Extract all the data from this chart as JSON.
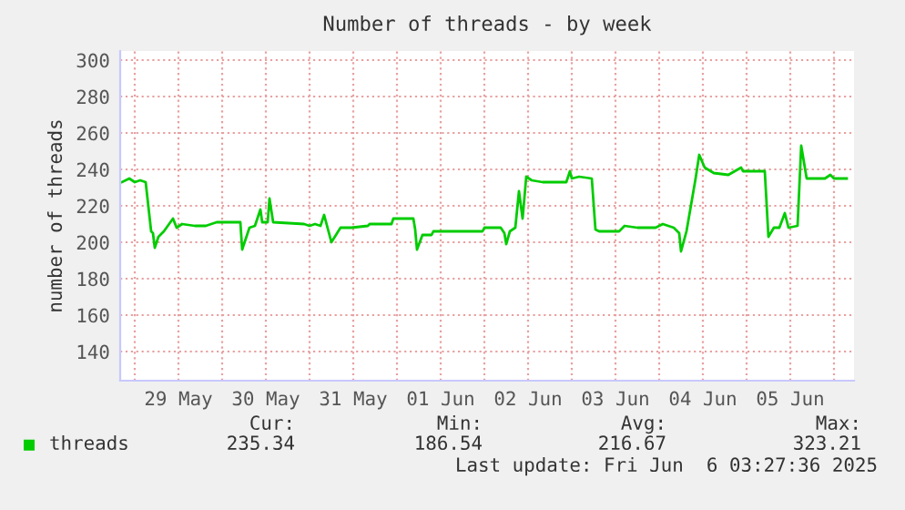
{
  "chart_data": {
    "type": "line",
    "title": "Number of threads - by week",
    "ylabel": "number of threads",
    "x": [
      "2025-05-28T20:30",
      "2025-05-28T22:30",
      "2025-05-29T00:00",
      "2025-05-29T01:30",
      "2025-05-29T03:00",
      "2025-05-29T04:30",
      "2025-05-29T05:00",
      "2025-05-29T05:30",
      "2025-05-29T06:30",
      "2025-05-29T08:00",
      "2025-05-29T10:30",
      "2025-05-29T11:30",
      "2025-05-29T13:00",
      "2025-05-29T16:30",
      "2025-05-29T19:30",
      "2025-05-29T22:30",
      "2025-05-30T05:00",
      "2025-05-30T05:30",
      "2025-05-30T07:30",
      "2025-05-30T09:00",
      "2025-05-30T10:30",
      "2025-05-30T11:00",
      "2025-05-30T12:30",
      "2025-05-30T13:00",
      "2025-05-30T14:00",
      "2025-05-30T22:30",
      "2025-05-31T00:00",
      "2025-05-31T01:30",
      "2025-05-31T03:00",
      "2025-05-31T04:00",
      "2025-05-31T06:00",
      "2025-05-31T08:30",
      "2025-05-31T11:30",
      "2025-05-31T16:00",
      "2025-05-31T16:30",
      "2025-05-31T22:30",
      "2025-05-31T23:00",
      "2025-06-01T04:30",
      "2025-06-01T05:00",
      "2025-06-01T05:30",
      "2025-06-01T07:00",
      "2025-06-01T09:30",
      "2025-06-01T10:00",
      "2025-06-01T16:00",
      "2025-06-01T23:30",
      "2025-06-02T00:00",
      "2025-06-02T04:30",
      "2025-06-02T05:30",
      "2025-06-02T06:00",
      "2025-06-02T07:00",
      "2025-06-02T08:30",
      "2025-06-02T09:30",
      "2025-06-02T10:30",
      "2025-06-02T11:30",
      "2025-06-02T13:00",
      "2025-06-02T16:00",
      "2025-06-02T22:30",
      "2025-06-02T23:30",
      "2025-06-03T00:00",
      "2025-06-03T02:00",
      "2025-06-03T05:30",
      "2025-06-03T06:30",
      "2025-06-03T07:30",
      "2025-06-03T13:00",
      "2025-06-03T14:30",
      "2025-06-03T18:00",
      "2025-06-03T23:00",
      "2025-06-04T01:00",
      "2025-06-04T04:00",
      "2025-06-04T05:30",
      "2025-06-04T06:00",
      "2025-06-04T07:30",
      "2025-06-04T10:00",
      "2025-06-04T11:00",
      "2025-06-04T12:30",
      "2025-06-04T15:00",
      "2025-06-04T19:00",
      "2025-06-04T22:30",
      "2025-06-04T23:00",
      "2025-06-05T05:00",
      "2025-06-05T06:00",
      "2025-06-05T07:30",
      "2025-06-05T09:00",
      "2025-06-05T10:30",
      "2025-06-05T11:30",
      "2025-06-05T14:00",
      "2025-06-05T15:00",
      "2025-06-05T16:30",
      "2025-06-05T21:30",
      "2025-06-05T23:00",
      "2025-06-06T00:00",
      "2025-06-06T03:30"
    ],
    "series": [
      {
        "name": "threads",
        "color": "#00cc00",
        "values": [
          233,
          235,
          233,
          234,
          233,
          206,
          205,
          197,
          203,
          206,
          213,
          208,
          210,
          209,
          209,
          211,
          211,
          196,
          208,
          209,
          218,
          211,
          211,
          224,
          211,
          210,
          209,
          210,
          209,
          215,
          200,
          208,
          208,
          209,
          210,
          210,
          213,
          213,
          207,
          196,
          204,
          204,
          206,
          206,
          206,
          208,
          208,
          205,
          199,
          206,
          208,
          228,
          213,
          236,
          234,
          233,
          233,
          239,
          235,
          236,
          235,
          207,
          206,
          206,
          209,
          208,
          208,
          210,
          208,
          205,
          195,
          206,
          235,
          248,
          241,
          238,
          237,
          241,
          239,
          239,
          203,
          208,
          208,
          216,
          208,
          209,
          253,
          235,
          235,
          237,
          235,
          235
        ]
      }
    ],
    "xlim": [
      "2025-05-28T20:00",
      "2025-06-06T05:30"
    ],
    "ylim": [
      124,
      305
    ],
    "xticks": [
      {
        "value": "2025-05-29T00:00",
        "label": null
      },
      {
        "value": "2025-05-29T12:00",
        "label": "29 May"
      },
      {
        "value": "2025-05-30T00:00",
        "label": null
      },
      {
        "value": "2025-05-30T12:00",
        "label": "30 May"
      },
      {
        "value": "2025-05-31T00:00",
        "label": null
      },
      {
        "value": "2025-05-31T12:00",
        "label": "31 May"
      },
      {
        "value": "2025-06-01T00:00",
        "label": null
      },
      {
        "value": "2025-06-01T12:00",
        "label": "01 Jun"
      },
      {
        "value": "2025-06-02T00:00",
        "label": null
      },
      {
        "value": "2025-06-02T12:00",
        "label": "02 Jun"
      },
      {
        "value": "2025-06-03T00:00",
        "label": null
      },
      {
        "value": "2025-06-03T12:00",
        "label": "03 Jun"
      },
      {
        "value": "2025-06-04T00:00",
        "label": null
      },
      {
        "value": "2025-06-04T12:00",
        "label": "04 Jun"
      },
      {
        "value": "2025-06-05T00:00",
        "label": null
      },
      {
        "value": "2025-06-05T12:00",
        "label": "05 Jun"
      },
      {
        "value": "2025-06-06T00:00",
        "label": null
      }
    ],
    "yticks": [
      140,
      160,
      180,
      200,
      220,
      240,
      260,
      280,
      300
    ],
    "grid": true,
    "legend": "bottom left",
    "marker": "none",
    "line_style": "solid",
    "annotations": [
      "Cur:",
      "Min:",
      "Avg:",
      "Max:",
      "235.34",
      "186.54",
      "216.67",
      "323.21",
      "Last update: Fri Jun  6 03:27:36 2025"
    ]
  }
}
